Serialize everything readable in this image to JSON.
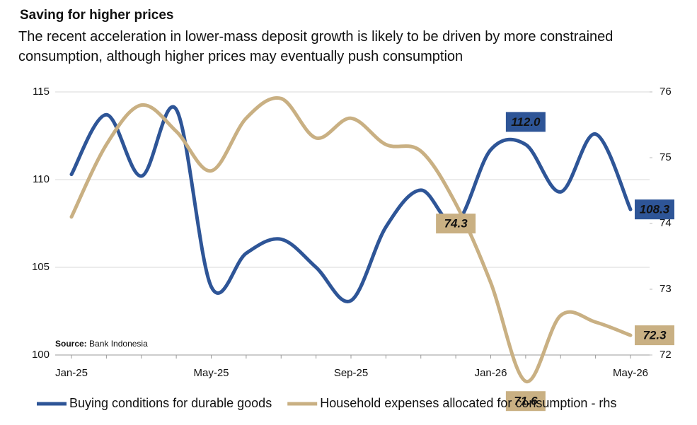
{
  "chart_data": {
    "type": "line",
    "title": "Saving for higher prices",
    "subtitle": "The recent acceleration in lower-mass deposit growth is likely to be driven by more constrained consumption, although higher prices may eventually push consumption",
    "source_label": "Source:",
    "source": "Bank Indonesia",
    "categories": [
      "Jan-25",
      null,
      null,
      null,
      "May-25",
      null,
      null,
      null,
      "Sep-25",
      null,
      null,
      null,
      "Jan-26",
      null,
      null,
      null,
      "May-26"
    ],
    "ylim": [
      100,
      115
    ],
    "yticks": [
      100,
      105,
      110,
      115
    ],
    "y2lim": [
      72,
      76
    ],
    "y2ticks": [
      72,
      73,
      74,
      75,
      76
    ],
    "grid": true,
    "series": [
      {
        "name": "Buying conditions for durable goods",
        "color": "#2e5597",
        "values": [
          110.3,
          113.7,
          110.2,
          114.0,
          103.9,
          105.8,
          106.6,
          105.0,
          103.1,
          107.3,
          109.4,
          107.5,
          111.7,
          112.0,
          109.3,
          112.6,
          108.3
        ],
        "value_labels": [
          null,
          null,
          null,
          null,
          null,
          null,
          null,
          null,
          null,
          null,
          null,
          null,
          null,
          "112.0",
          null,
          null,
          "108.3"
        ]
      },
      {
        "name": "Household expenses allocated for consumption - rhs",
        "color": "#c9b083",
        "axis": "y2",
        "values": [
          74.1,
          75.2,
          75.8,
          75.4,
          74.8,
          75.6,
          75.9,
          75.3,
          75.6,
          75.2,
          75.1,
          74.3,
          73.1,
          71.6,
          72.6,
          72.5,
          72.3
        ],
        "value_labels": [
          null,
          null,
          null,
          null,
          null,
          null,
          null,
          null,
          null,
          null,
          null,
          "74.3",
          null,
          "71.6",
          null,
          null,
          "72.3"
        ]
      }
    ]
  }
}
